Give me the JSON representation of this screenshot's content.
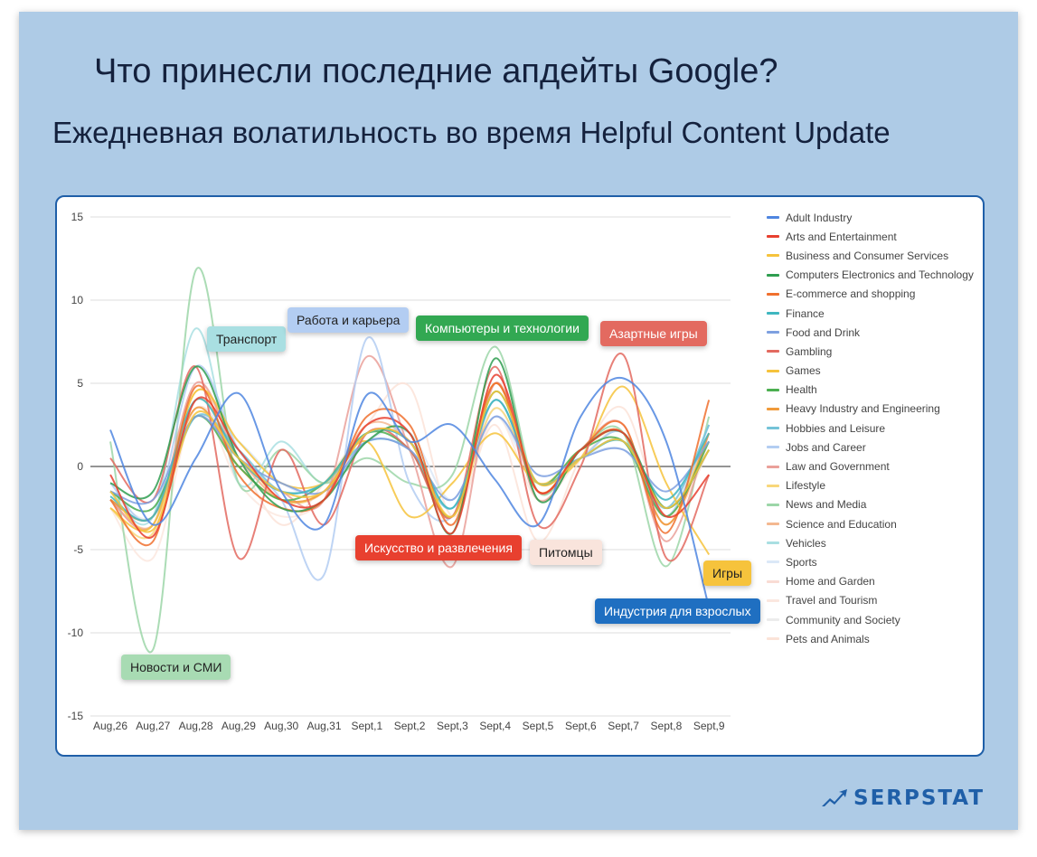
{
  "header": {
    "title": "Что принесли последние апдейты Google?",
    "subtitle": "Ежедневная волатильность во время Helpful Content Update"
  },
  "brand": {
    "name": "SERPSTAT"
  },
  "callouts": [
    {
      "key": "transport",
      "label": "Транспорт",
      "bg": "#a9dfe2",
      "color": "#222"
    },
    {
      "key": "jobs",
      "label": "Работа и карьера",
      "bg": "#b3cdf2",
      "color": "#222"
    },
    {
      "key": "computers",
      "label": "Компьютеры и технологии",
      "bg": "#32a852",
      "color": "#ffffff"
    },
    {
      "key": "gambling",
      "label": "Азартные игры",
      "bg": "#e36a60",
      "color": "#ffffff"
    },
    {
      "key": "arts",
      "label": "Искусство и развлечения",
      "bg": "#e8402f",
      "color": "#ffffff"
    },
    {
      "key": "pets",
      "label": "Питомцы",
      "bg": "#f9e4dc",
      "color": "#222"
    },
    {
      "key": "games",
      "label": "Игры",
      "bg": "#f6c33c",
      "color": "#222"
    },
    {
      "key": "adult",
      "label": "Индустрия для взрослых",
      "bg": "#1f6fc1",
      "color": "#ffffff"
    },
    {
      "key": "news",
      "label": "Новости и СМИ",
      "bg": "#a8dbb3",
      "color": "#222"
    }
  ],
  "chart_data": {
    "type": "line",
    "x": [
      "Aug,26",
      "Aug,27",
      "Aug,28",
      "Aug,29",
      "Aug,30",
      "Aug,31",
      "Sept,1",
      "Sept,2",
      "Sept,3",
      "Sept,4",
      "Sept,5",
      "Sept,6",
      "Sept,7",
      "Sept,8",
      "Sept,9"
    ],
    "yticks": [
      -15,
      -10,
      -5,
      0,
      5,
      10,
      15
    ],
    "ylim": [
      -15,
      15
    ],
    "grid": true,
    "legend": "right",
    "series": [
      {
        "name": "Adult Industry",
        "color": "#4f86e0",
        "values": [
          2.2,
          -3.5,
          0.5,
          4.4,
          -1.5,
          -3.5,
          4.3,
          1.5,
          2.5,
          -0.8,
          -3.5,
          3,
          5.3,
          1.5,
          -8.5
        ]
      },
      {
        "name": "Arts and Entertainment",
        "color": "#e8402f",
        "values": [
          -0.5,
          -4.2,
          4,
          1,
          -2,
          -2,
          2.5,
          2,
          -4,
          5.5,
          -1.5,
          1,
          2,
          -3,
          -0.5
        ]
      },
      {
        "name": "Business and Consumer Services",
        "color": "#f6c33c",
        "values": [
          -1.5,
          -3.8,
          3.2,
          0.5,
          -1.5,
          -1.5,
          2,
          1.5,
          -3,
          4.5,
          -1,
          0.5,
          1.5,
          -2.5,
          1
        ]
      },
      {
        "name": "Computers Electronics and Technology",
        "color": "#2f9e50",
        "values": [
          -1,
          -1.5,
          6,
          0.5,
          -2.5,
          -2,
          1.5,
          2,
          -4,
          6.5,
          -2,
          1,
          2,
          -2.5,
          1
        ]
      },
      {
        "name": "E-commerce and shopping",
        "color": "#f0702e",
        "values": [
          -2,
          -4.5,
          4.8,
          -0.5,
          -2.5,
          -2,
          3,
          2.5,
          -3.5,
          5,
          -1.5,
          1,
          2.5,
          -4,
          4
        ]
      },
      {
        "name": "Finance",
        "color": "#3fb7c0",
        "values": [
          -1.8,
          -3,
          4,
          0.5,
          -1.5,
          -1,
          2,
          1.5,
          -2.5,
          4,
          -1,
          0.5,
          1.5,
          -2,
          2
        ]
      },
      {
        "name": "Food and Drink",
        "color": "#7ea0e0",
        "values": [
          -1.5,
          -2,
          3,
          0.5,
          -1,
          -1.5,
          1.5,
          1,
          -2,
          3,
          -0.5,
          0.5,
          1,
          -1.5,
          1.5
        ]
      },
      {
        "name": "Gambling",
        "color": "#e36a60",
        "values": [
          0.5,
          -2,
          6,
          -5.5,
          1,
          -3.5,
          2,
          1,
          -3,
          6,
          -3.5,
          0,
          6.7,
          -5.5,
          -0.5
        ]
      },
      {
        "name": "Games",
        "color": "#f6c33c",
        "values": [
          -2.5,
          -3.5,
          4.5,
          1.5,
          -1,
          -1,
          1.5,
          -3,
          -1,
          2,
          -1,
          0.5,
          4.8,
          -1,
          -5.3
        ]
      },
      {
        "name": "Health",
        "color": "#4caf50",
        "values": [
          -1.5,
          -2.5,
          3,
          0,
          -2,
          -1,
          2,
          1,
          -3,
          4.5,
          -1,
          1,
          1.5,
          -3,
          1.5
        ]
      },
      {
        "name": "Heavy Industry and Engineering",
        "color": "#f09a3a",
        "values": [
          -2,
          -3,
          3.5,
          0,
          -2,
          -1.5,
          2,
          1.5,
          -3,
          5,
          -1.5,
          1,
          2,
          -3.5,
          2
        ]
      },
      {
        "name": "Hobbies and Leisure",
        "color": "#74c3d8",
        "values": [
          -2,
          -3,
          3,
          1,
          -1.5,
          -1,
          1.5,
          1,
          -2.5,
          4,
          -1,
          0.5,
          1.5,
          -2.5,
          2.5
        ]
      },
      {
        "name": "Jobs and Career",
        "color": "#b3cdf2",
        "values": [
          -1,
          -3,
          6,
          1,
          -2,
          -6.5,
          7.7,
          -1,
          -3,
          4,
          -1,
          0.5,
          2,
          -3,
          2.5
        ]
      },
      {
        "name": "Law and Government",
        "color": "#eaa09a",
        "values": [
          -2,
          -3.5,
          5,
          0.5,
          -1.5,
          -2,
          6.6,
          1,
          -6,
          5,
          -2,
          1,
          2.5,
          -4.5,
          2
        ]
      },
      {
        "name": "Lifestyle",
        "color": "#f8d77a",
        "values": [
          -2.5,
          -4,
          4.5,
          1,
          -2,
          -1.5,
          2,
          1.5,
          -3,
          3.5,
          -1,
          1,
          2,
          -3,
          2
        ]
      },
      {
        "name": "News and Media",
        "color": "#9cd6a8",
        "values": [
          1.5,
          -11,
          11.8,
          -1,
          1,
          -1,
          0.5,
          -1,
          -0.5,
          7.2,
          -1.5,
          1,
          2,
          -6,
          3
        ]
      },
      {
        "name": "Science and Education",
        "color": "#f4b890",
        "values": [
          -2,
          -3.5,
          4,
          0.5,
          -2,
          -1.5,
          2.5,
          1.5,
          -3,
          5,
          -1.5,
          1,
          2,
          -3.5,
          2
        ]
      },
      {
        "name": "Vehicles",
        "color": "#a9dfe2",
        "values": [
          -1.5,
          -3,
          8.3,
          -1,
          1.5,
          -1,
          2,
          1.5,
          -2.5,
          4,
          -1,
          0.5,
          2,
          -3,
          2.5
        ]
      },
      {
        "name": "Sports",
        "color": "#dbe8f7",
        "values": [
          -1.5,
          -2.5,
          3,
          1.5,
          -1,
          -1.5,
          1.5,
          2,
          -2,
          3,
          -1,
          0.5,
          1,
          -2,
          1.5
        ]
      },
      {
        "name": "Home and Garden",
        "color": "#f9dcd4",
        "values": [
          -2,
          -3.5,
          3.5,
          0.5,
          -2,
          -1.5,
          2,
          1.5,
          -3,
          4,
          -1,
          1,
          1.5,
          -3,
          2
        ]
      },
      {
        "name": "Travel and Tourism",
        "color": "#fbe7df",
        "values": [
          -2.5,
          -5.5,
          3.5,
          -1,
          -3,
          -2,
          2,
          1,
          -3.5,
          3,
          -2,
          0.5,
          2,
          -3.5,
          1.5
        ]
      },
      {
        "name": "Community and Society",
        "color": "#ececec",
        "values": [
          -1.5,
          -3,
          3,
          0.5,
          -1.5,
          -1,
          1.5,
          1,
          -2.5,
          3.5,
          -1,
          0.5,
          1.5,
          -2.5,
          2
        ]
      },
      {
        "name": "Pets and Animals",
        "color": "#fbe3d8",
        "values": [
          -2,
          -3.5,
          5,
          0.5,
          -3.5,
          -1,
          2.5,
          4.8,
          -3,
          2.5,
          -4.5,
          0.5,
          3.5,
          -3,
          1
        ]
      }
    ]
  }
}
